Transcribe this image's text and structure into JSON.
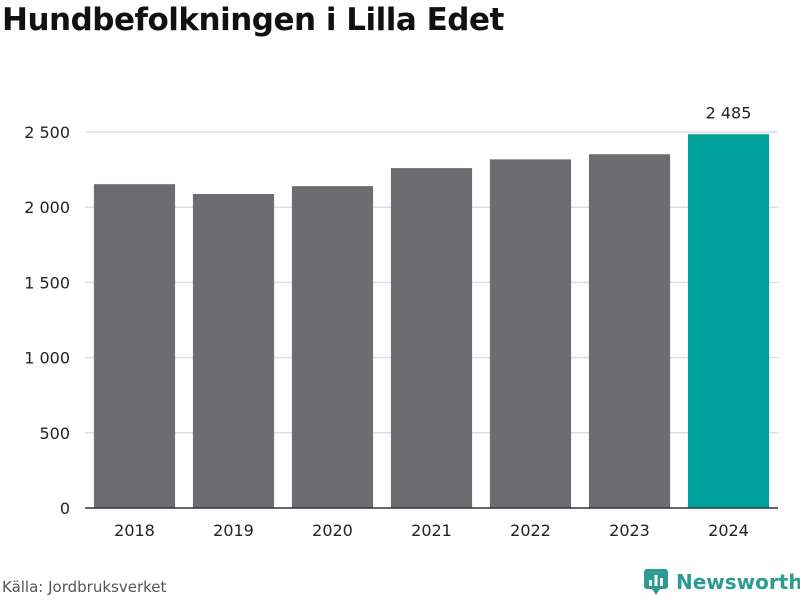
{
  "title": "Hundbefolkningen i Lilla Edet",
  "source": "Källa: Jordbruksverket",
  "brand": {
    "name": "Newsworthy",
    "icon": "newsworthy-logo-icon",
    "color": "#2c9c93"
  },
  "colors": {
    "bar": "#6d6c71",
    "highlight": "#00a39b",
    "grid": "#dddddd",
    "axis": "#333333"
  },
  "chart_data": {
    "type": "bar",
    "title": "Hundbefolkningen i Lilla Edet",
    "xlabel": "",
    "ylabel": "",
    "categories": [
      "2018",
      "2019",
      "2020",
      "2021",
      "2022",
      "2023",
      "2024"
    ],
    "values": [
      2153,
      2088,
      2140,
      2260,
      2318,
      2352,
      2485
    ],
    "highlight_index": 6,
    "data_labels": [
      {
        "index": 6,
        "text": "2 485"
      }
    ],
    "ylim": [
      0,
      2500
    ],
    "yticks": [
      0,
      500,
      1000,
      1500,
      2000,
      2500
    ],
    "ytick_labels": [
      "0",
      "500",
      "1 000",
      "1 500",
      "2 000",
      "2 500"
    ],
    "grid": true,
    "legend": false
  }
}
